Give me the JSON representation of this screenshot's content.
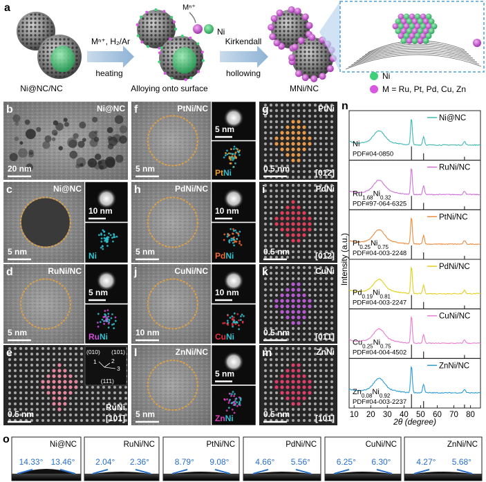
{
  "panel_a": {
    "label": "a",
    "caption_left": "Ni@NC/NC",
    "caption_mid": "Alloying onto surface",
    "caption_right": "MNi/NC",
    "step1_top": "Mⁿ⁺, H₂/Ar",
    "step1_bottom": "heating",
    "step2_top": "Kirkendall",
    "step2_bottom": "hollowing",
    "ion": "Mⁿ⁺",
    "ni_atom": "Ni",
    "legend": [
      {
        "text": "Ni",
        "color": "#3fd07a"
      },
      {
        "text": "M = Ru, Pt, Pd, Cu, Zn",
        "color": "#d957e0"
      }
    ]
  },
  "micrographs": [
    {
      "label": "b",
      "title": "Ni@NC",
      "scale": "20 nm",
      "kind": "particles"
    },
    {
      "label": "c",
      "title": "Ni@NC",
      "scale": "5 nm",
      "kind": "core",
      "insets": [
        {
          "scale": "10 nm"
        },
        {
          "elements": [
            {
              "text": "Ni",
              "color": "#2fc2d0"
            }
          ]
        }
      ]
    },
    {
      "label": "d",
      "title": "RuNi/NC",
      "scale": "5 nm",
      "kind": "hollow",
      "insets": [
        {
          "scale": "5 nm"
        },
        {
          "elements": [
            {
              "text": "Ru",
              "color": "#d24ad8"
            },
            {
              "text": "Ni",
              "color": "#2fc2d0"
            }
          ]
        }
      ]
    },
    {
      "label": "e",
      "title": "RuNi",
      "scale": "0.5 nm",
      "kind": "lattice",
      "zone": "[101̄]",
      "highlight": "#f08ca8",
      "fft": [
        "(010)",
        "(101)",
        "1",
        "2",
        "3",
        "(11̄1)"
      ]
    },
    {
      "label": "f",
      "title": "PtNi/NC",
      "scale": "5 nm",
      "kind": "hollow",
      "insets": [
        {
          "scale": "5 nm"
        },
        {
          "elements": [
            {
              "text": "Pt",
              "color": "#f0a030"
            },
            {
              "text": "Ni",
              "color": "#2fc2d0"
            }
          ]
        }
      ]
    },
    {
      "label": "h",
      "title": "PdNi/NC",
      "scale": "5 nm",
      "kind": "hollow",
      "insets": [
        {
          "scale": "10 nm"
        },
        {
          "elements": [
            {
              "text": "Pd",
              "color": "#f06a30"
            },
            {
              "text": "Ni",
              "color": "#2fc2d0"
            }
          ]
        }
      ]
    },
    {
      "label": "j",
      "title": "CuNi/NC",
      "scale": "10 nm",
      "kind": "hollow",
      "insets": [
        {
          "scale": "10 nm"
        },
        {
          "elements": [
            {
              "text": "Cu",
              "color": "#e83040"
            },
            {
              "text": "Ni",
              "color": "#2fc2d0"
            }
          ]
        }
      ]
    },
    {
      "label": "l",
      "title": "ZnNi/NC",
      "scale": "5 nm",
      "kind": "hollow",
      "insets": [
        {
          "scale": "5 nm"
        },
        {
          "elements": [
            {
              "text": "Zn",
              "color": "#e040c0"
            },
            {
              "text": "Ni",
              "color": "#2fc2d0"
            }
          ]
        }
      ]
    },
    {
      "label": "g",
      "title": "PtNi",
      "scale": "0.5 nm",
      "kind": "lattice",
      "zone": "[01̄2]",
      "highlight": "#f0a050"
    },
    {
      "label": "i",
      "title": "PdNi",
      "scale": "0.5 nm",
      "kind": "lattice",
      "zone": "[01̄2]",
      "highlight": "#e84060"
    },
    {
      "label": "k",
      "title": "CuNi",
      "scale": "0.5 nm",
      "kind": "lattice",
      "zone": "[01̄1]",
      "highlight": "#c060e0"
    },
    {
      "label": "m",
      "title": "ZnNi",
      "scale": "0.5 nm",
      "kind": "lattice",
      "zone": "[101̄]",
      "highlight": "#e84070"
    }
  ],
  "panel_n": {
    "label": "n",
    "ylabel": "Intensity (a.u.)",
    "xlabel": "2θ (degree)",
    "xlim": [
      7,
      86
    ],
    "xticks": [
      10,
      20,
      30,
      40,
      50,
      60,
      70,
      80
    ],
    "traces": [
      {
        "name": "Ni@NC",
        "color": "#3bb8b4",
        "phase": [
          "Ni"
        ],
        "pdf": "PDF#04-0850"
      },
      {
        "name": "RuNi/NC",
        "color": "#d070d8",
        "phase": [
          "Ru",
          "1.68",
          "Ni",
          "0.32"
        ],
        "pdf": "PDF#97-064-6325"
      },
      {
        "name": "PtNi/NC",
        "color": "#ec8a3a",
        "phase": [
          "Pt",
          "0.25",
          "Ni",
          "0.75"
        ],
        "pdf": "PDF#04-003-2248"
      },
      {
        "name": "PdNi/NC",
        "color": "#e2cf1c",
        "phase": [
          "Pd",
          "0.19",
          "Ni",
          "0.81"
        ],
        "pdf": "PDF#04-003-2247"
      },
      {
        "name": "CuNi/NC",
        "color": "#e87ad0",
        "phase": [
          "Cu",
          "0.25",
          "Ni",
          "0.75"
        ],
        "pdf": "PDF#04-004-4502"
      },
      {
        "name": "ZnNi/NC",
        "color": "#2a9ad8",
        "phase": [
          "Zn",
          "0.08",
          "Ni",
          "0.92"
        ],
        "pdf": "PDF#04-003-2237"
      }
    ]
  },
  "panel_o": {
    "label": "o",
    "samples": [
      {
        "name": "Ni@NC",
        "left": "14.33°",
        "right": "13.46°"
      },
      {
        "name": "RuNi/NC",
        "left": "2.04°",
        "right": "2.36°"
      },
      {
        "name": "PtNi/NC",
        "left": "8.79°",
        "right": "9.08°"
      },
      {
        "name": "PdNi/NC",
        "left": "4.66°",
        "right": "5.56°"
      },
      {
        "name": "CuNi/NC",
        "left": "6.25°",
        "right": "6.30°"
      },
      {
        "name": "ZnNi/NC",
        "left": "4.27°",
        "right": "5.68°"
      }
    ]
  }
}
